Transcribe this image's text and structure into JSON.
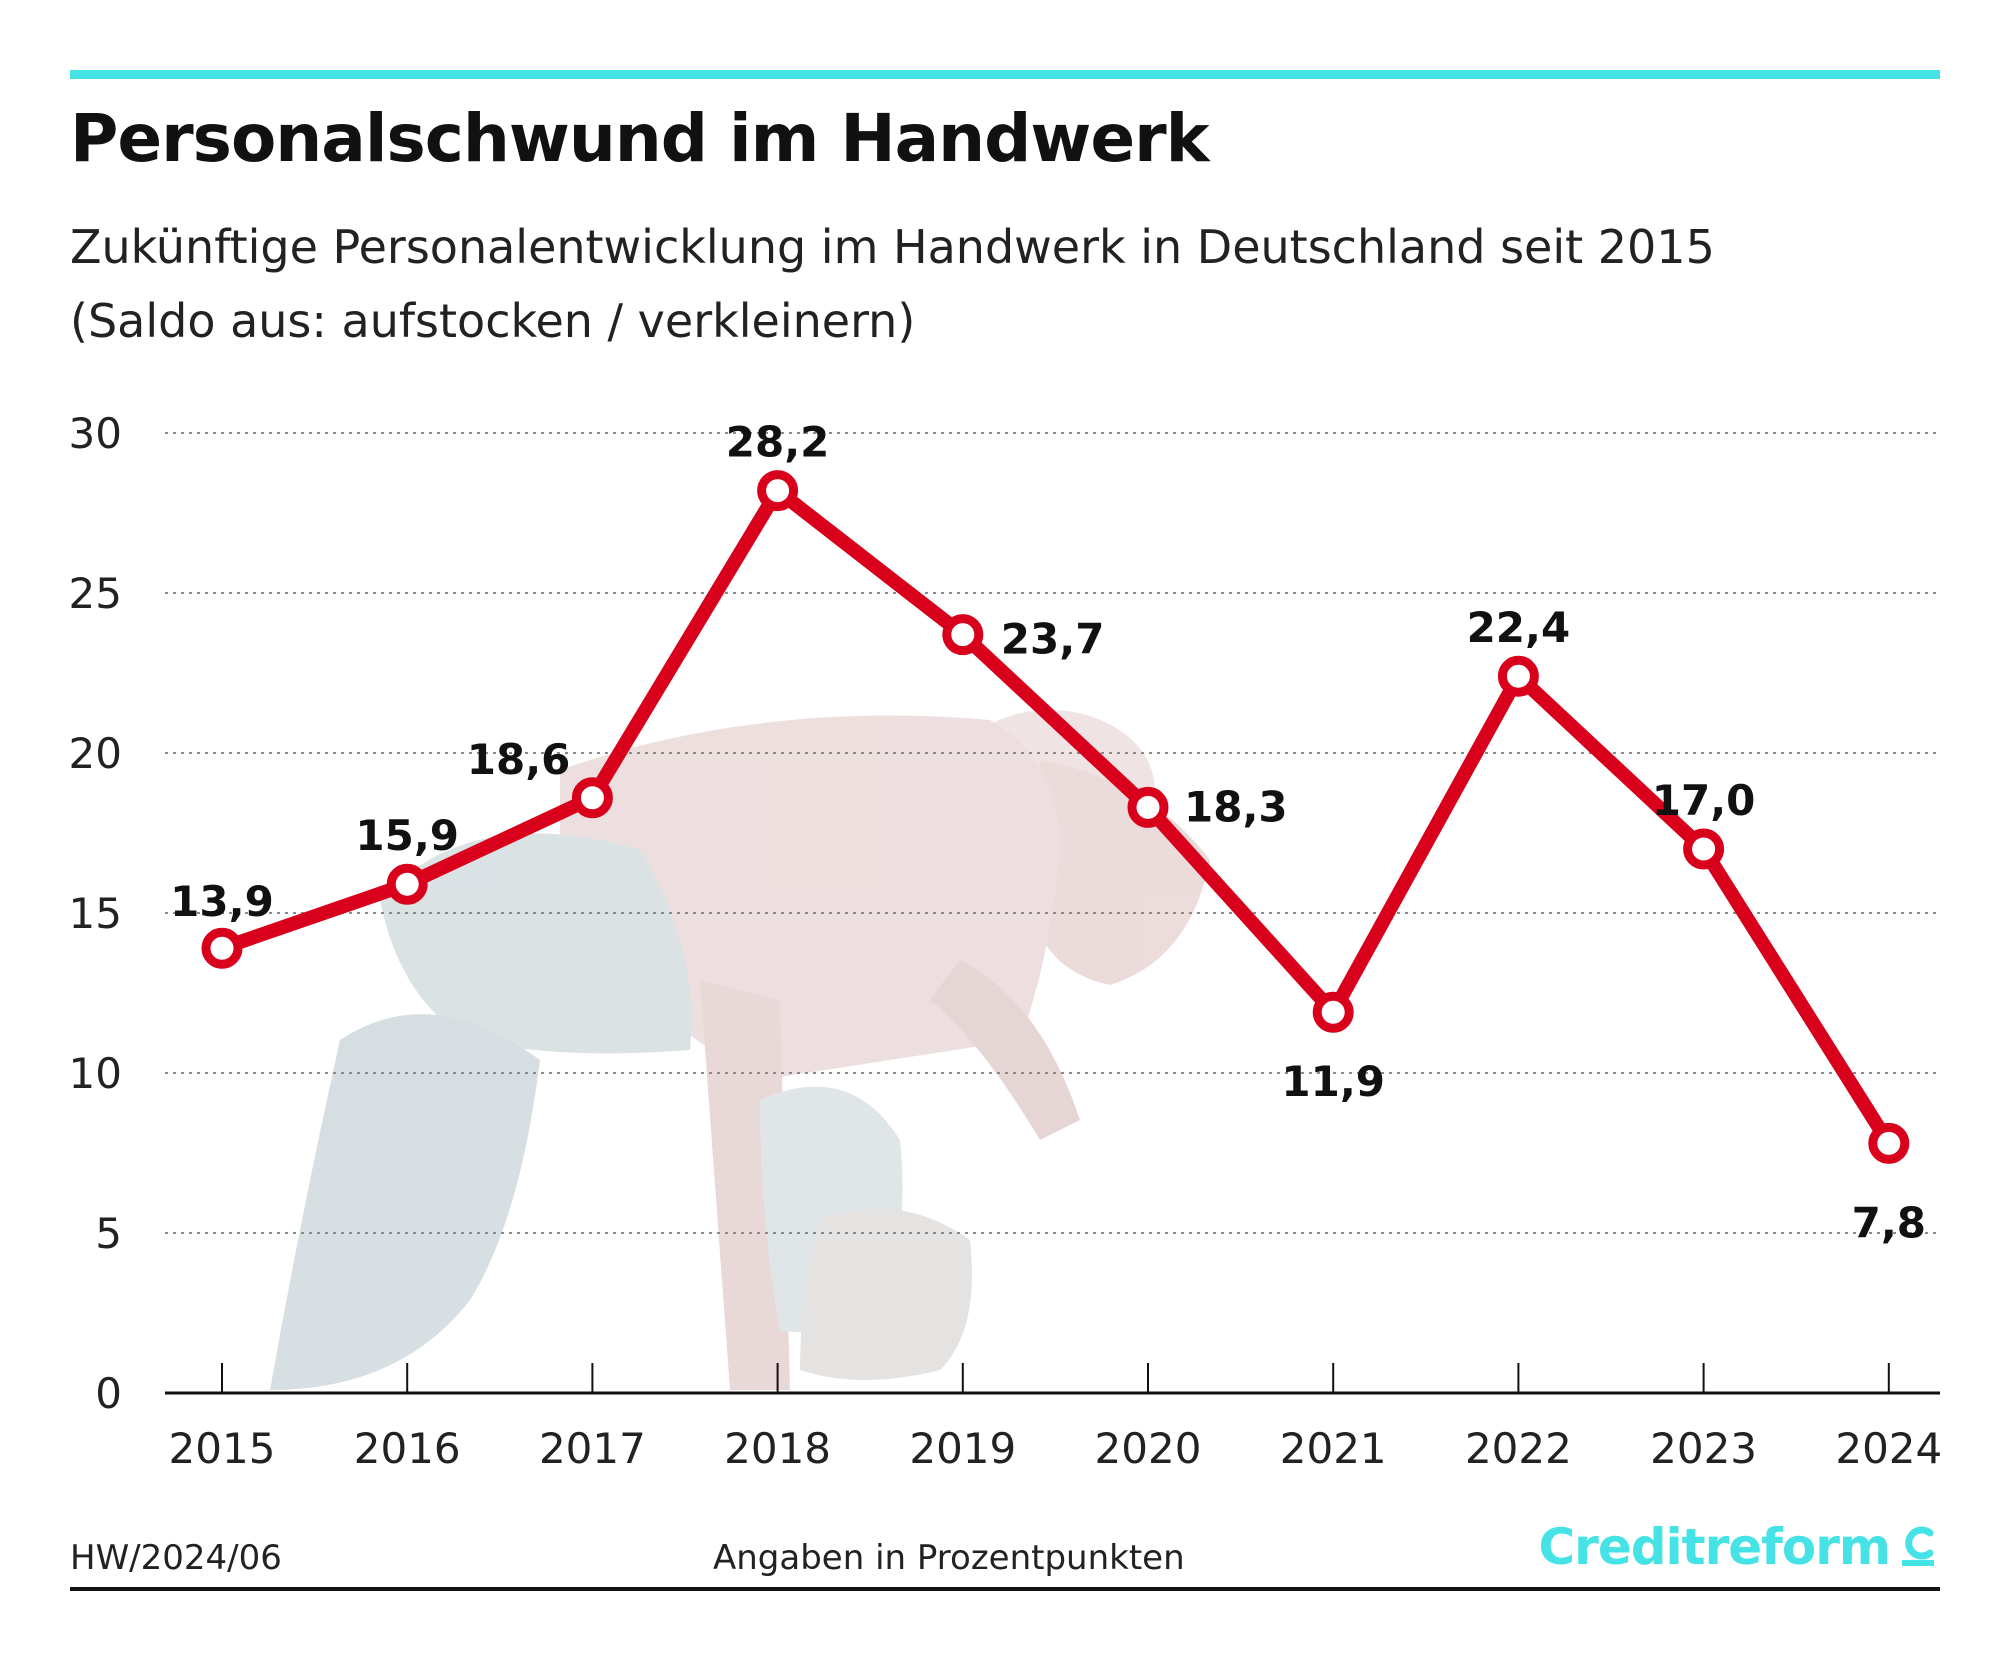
{
  "header": {
    "title": "Personalschwund im Handwerk",
    "subtitle_line1": "Zukünftige Personalentwicklung im Handwerk in Deutschland seit 2015",
    "subtitle_line2": "(Saldo aus: aufstocken / verkleinern)"
  },
  "footer": {
    "code": "HW/2024/06",
    "note": "Angaben in Prozentpunkten",
    "brand": "Creditreform"
  },
  "colors": {
    "accent": "#45e2e6",
    "line": "#d9001b",
    "text": "#1a1a1a"
  },
  "chart_data": {
    "type": "line",
    "title": "Personalschwund im Handwerk",
    "categories": [
      "2015",
      "2016",
      "2017",
      "2018",
      "2019",
      "2020",
      "2021",
      "2022",
      "2023",
      "2024"
    ],
    "values": [
      13.9,
      15.9,
      18.6,
      28.2,
      23.7,
      18.3,
      11.9,
      22.4,
      17.0,
      7.8
    ],
    "data_labels": [
      "13,9",
      "15,9",
      "18,6",
      "28,2",
      "23,7",
      "18,3",
      "11,9",
      "22,4",
      "17,0",
      "7,8"
    ],
    "ylim": [
      0,
      30
    ],
    "yticks": [
      0,
      5,
      10,
      15,
      20,
      25,
      30
    ],
    "ytick_labels": [
      "0",
      "5",
      "10",
      "15",
      "20",
      "25",
      "30"
    ],
    "xlabel": "",
    "ylabel": "",
    "grid": true,
    "background_image": "craftsman-photo"
  }
}
